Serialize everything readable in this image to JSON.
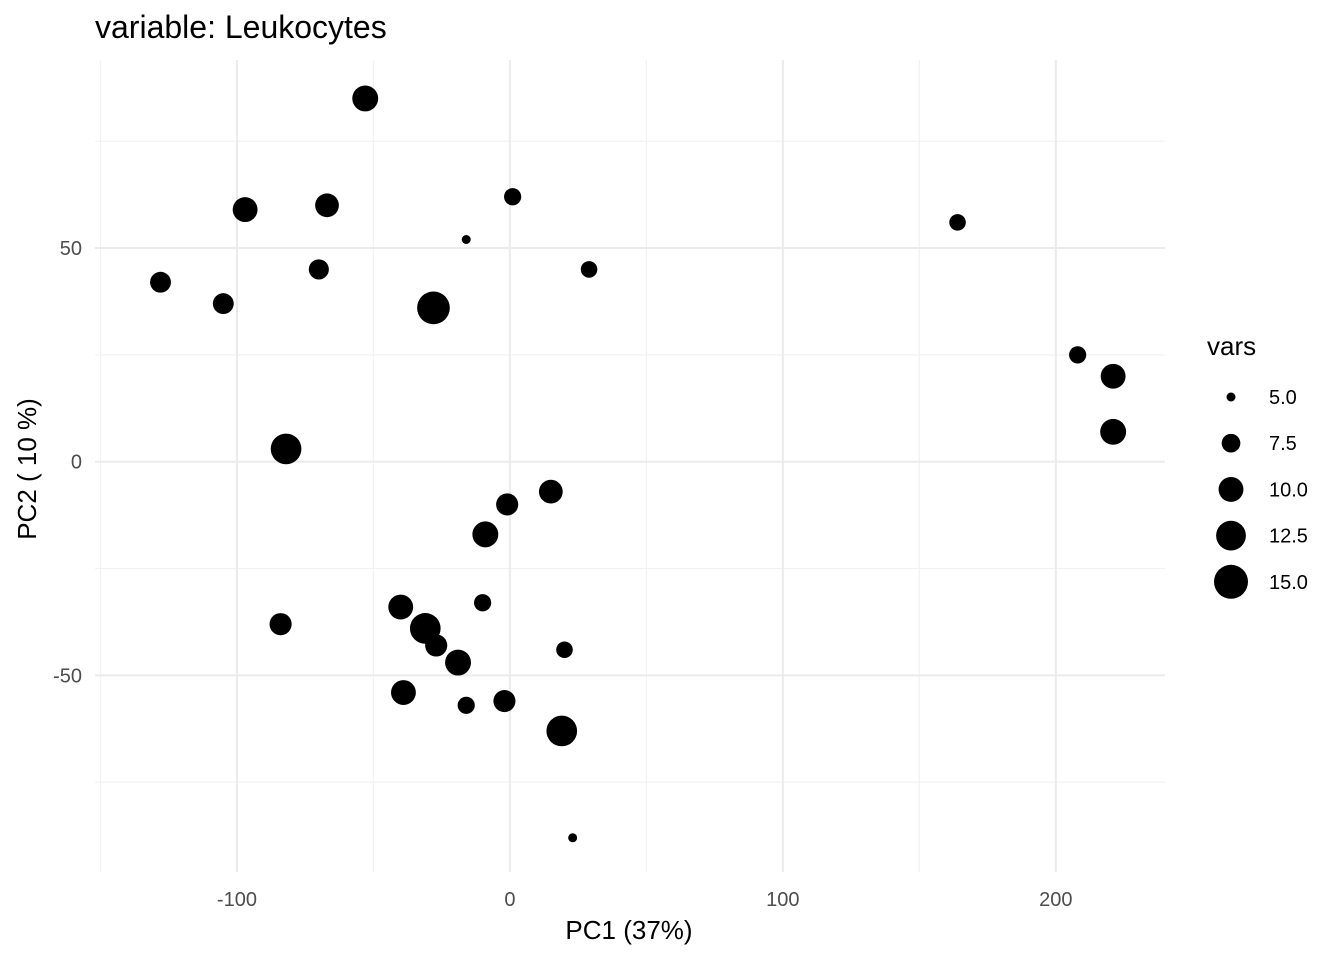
{
  "chart_data": {
    "type": "scatter",
    "title": "variable: Leukocytes",
    "xlabel": "PC1 (37%)",
    "ylabel": "PC2 ( 10 %)",
    "xlim": [
      -152,
      240
    ],
    "ylim": [
      -96,
      94
    ],
    "x_ticks": [
      -100,
      0,
      100,
      200
    ],
    "x_tick_labels": [
      "-100",
      "0",
      "100",
      "200"
    ],
    "y_ticks": [
      -50,
      0,
      50
    ],
    "y_tick_labels": [
      "-50",
      "0",
      "50"
    ],
    "x_minor": [
      -150,
      -50,
      50,
      150
    ],
    "y_minor": [
      -75,
      -25,
      25,
      75
    ],
    "grid": true,
    "point_color": "#000000",
    "legend": {
      "title": "vars",
      "position": "right",
      "values": [
        5.0,
        7.5,
        10.0,
        12.5,
        15.0
      ],
      "labels": [
        "5.0",
        "7.5",
        "10.0",
        "12.5",
        "15.0"
      ]
    },
    "size_range": [
      5,
      15
    ],
    "points": [
      {
        "x": -53,
        "y": 85,
        "size": 10.5
      },
      {
        "x": -97,
        "y": 59,
        "size": 10.0
      },
      {
        "x": -67,
        "y": 60,
        "size": 9.5
      },
      {
        "x": 1,
        "y": 62,
        "size": 7.0
      },
      {
        "x": -16,
        "y": 52,
        "size": 5.0
      },
      {
        "x": 164,
        "y": 56,
        "size": 6.8
      },
      {
        "x": -70,
        "y": 45,
        "size": 8.0
      },
      {
        "x": 29,
        "y": 45,
        "size": 6.8
      },
      {
        "x": -128,
        "y": 42,
        "size": 8.3
      },
      {
        "x": -105,
        "y": 37,
        "size": 8.3
      },
      {
        "x": -28,
        "y": 36,
        "size": 14.2
      },
      {
        "x": 208,
        "y": 25,
        "size": 7.0
      },
      {
        "x": 221,
        "y": 20,
        "size": 10.0
      },
      {
        "x": 221,
        "y": 7,
        "size": 10.5
      },
      {
        "x": -82,
        "y": 3,
        "size": 13.0
      },
      {
        "x": 15,
        "y": -7,
        "size": 9.5
      },
      {
        "x": -1,
        "y": -10,
        "size": 8.8
      },
      {
        "x": -9,
        "y": -17,
        "size": 10.5
      },
      {
        "x": -10,
        "y": -33,
        "size": 7.0
      },
      {
        "x": -40,
        "y": -34,
        "size": 10.0
      },
      {
        "x": -31,
        "y": -39,
        "size": 13.0
      },
      {
        "x": -27,
        "y": -43,
        "size": 8.8
      },
      {
        "x": -19,
        "y": -47,
        "size": 10.5
      },
      {
        "x": 20,
        "y": -44,
        "size": 6.8
      },
      {
        "x": -84,
        "y": -38,
        "size": 8.8
      },
      {
        "x": -39,
        "y": -54,
        "size": 10.0
      },
      {
        "x": -16,
        "y": -57,
        "size": 7.0
      },
      {
        "x": -2,
        "y": -56,
        "size": 8.8
      },
      {
        "x": 19,
        "y": -63,
        "size": 13.0
      },
      {
        "x": 23,
        "y": -88,
        "size": 5.0
      }
    ]
  }
}
